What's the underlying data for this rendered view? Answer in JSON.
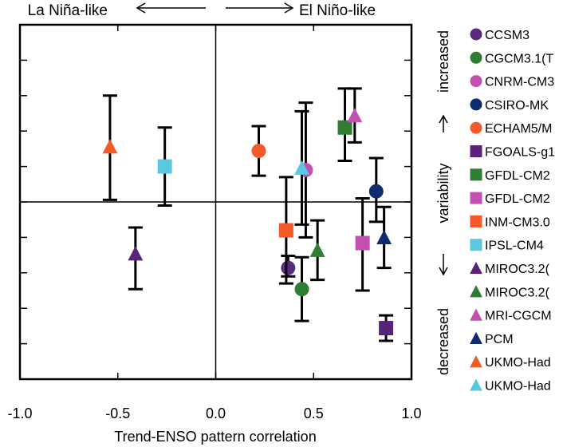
{
  "chart_data": {
    "type": "scatter",
    "xlabel": "Trend-ENSO pattern correlation",
    "xlim": [
      -1.0,
      1.0
    ],
    "ylim": [
      -2.5,
      2.5
    ],
    "xticks": [
      "-1.0",
      "-0.5",
      "0.0",
      "0.5",
      "1.0"
    ],
    "yticks": [
      -2.5,
      -2,
      -1.5,
      -1,
      -0.5,
      0,
      0.5,
      1,
      1.5,
      2,
      2.5
    ],
    "top_left_label": "La Niña-like",
    "top_right_label": "El Niño-like",
    "right_axis": {
      "increased": "increased",
      "variability": "variability",
      "decreased": "decreased"
    },
    "grid": false,
    "legend_position": "right",
    "series": [
      {
        "name": "CCSM3",
        "color": "#5b2a7e",
        "marker": "circle",
        "x": 0.37,
        "y": -0.93,
        "err_low": 0.12,
        "err_high": 0.17
      },
      {
        "name": "CGCM3.1(T",
        "color": "#2e7d32",
        "marker": "circle",
        "x": 0.44,
        "y": -1.23,
        "err_low": 0.45,
        "err_high": 0.45
      },
      {
        "name": "CNRM-CM3",
        "color": "#c34fb0",
        "marker": "circle",
        "x": 0.46,
        "y": 0.45,
        "err_low": 0.95,
        "err_high": 0.95
      },
      {
        "name": "CSIRO-MK",
        "color": "#0d2b6e",
        "marker": "circle",
        "x": 0.82,
        "y": 0.15,
        "err_low": 0.43,
        "err_high": 0.47
      },
      {
        "name": "ECHAM5/M",
        "color": "#f25a2a",
        "marker": "circle",
        "x": 0.22,
        "y": 0.72,
        "err_low": 0.35,
        "err_high": 0.35
      },
      {
        "name": "FGOALS-g1",
        "color": "#5a237a",
        "marker": "square",
        "x": 0.87,
        "y": -1.78,
        "err_low": 0.18,
        "err_high": 0.18
      },
      {
        "name": "GFDL-CM2",
        "color": "#2e7d32",
        "marker": "square",
        "x": 0.66,
        "y": 1.05,
        "err_low": 0.47,
        "err_high": 0.55
      },
      {
        "name": "GFDL-CM2",
        "color": "#c34fb0",
        "marker": "square",
        "x": 0.75,
        "y": -0.58,
        "err_low": 0.67,
        "err_high": 0.63
      },
      {
        "name": "INM-CM3.0",
        "color": "#f25a2a",
        "marker": "square",
        "x": 0.36,
        "y": -0.4,
        "err_low": 0.75,
        "err_high": 0.75
      },
      {
        "name": "IPSL-CM4",
        "color": "#5bc7e0",
        "marker": "square",
        "x": -0.26,
        "y": 0.5,
        "err_low": 0.55,
        "err_high": 0.55
      },
      {
        "name": "MIROC3.2(",
        "color": "#5a237a",
        "marker": "triangle",
        "x": -0.41,
        "y": -0.73,
        "err_low": 0.5,
        "err_high": 0.37
      },
      {
        "name": "MIROC3.2(",
        "color": "#2e7d32",
        "marker": "triangle",
        "x": 0.52,
        "y": -0.68,
        "err_low": 0.42,
        "err_high": 0.42
      },
      {
        "name": "MRI-CGCM",
        "color": "#c34fb0",
        "marker": "triangle",
        "x": 0.71,
        "y": 1.22,
        "err_low": 0.38,
        "err_high": 0.38
      },
      {
        "name": "PCM",
        "color": "#0d2b6e",
        "marker": "triangle",
        "x": 0.86,
        "y": -0.5,
        "err_low": 0.43,
        "err_high": 0.43
      },
      {
        "name": "UKMO-Had",
        "color": "#f25a2a",
        "marker": "triangle",
        "x": -0.54,
        "y": 0.78,
        "err_low": 0.75,
        "err_high": 0.72
      },
      {
        "name": "UKMO-Had",
        "color": "#5bc7e0",
        "marker": "triangle",
        "x": 0.44,
        "y": 0.48,
        "err_low": 0.8,
        "err_high": 0.8
      }
    ]
  }
}
